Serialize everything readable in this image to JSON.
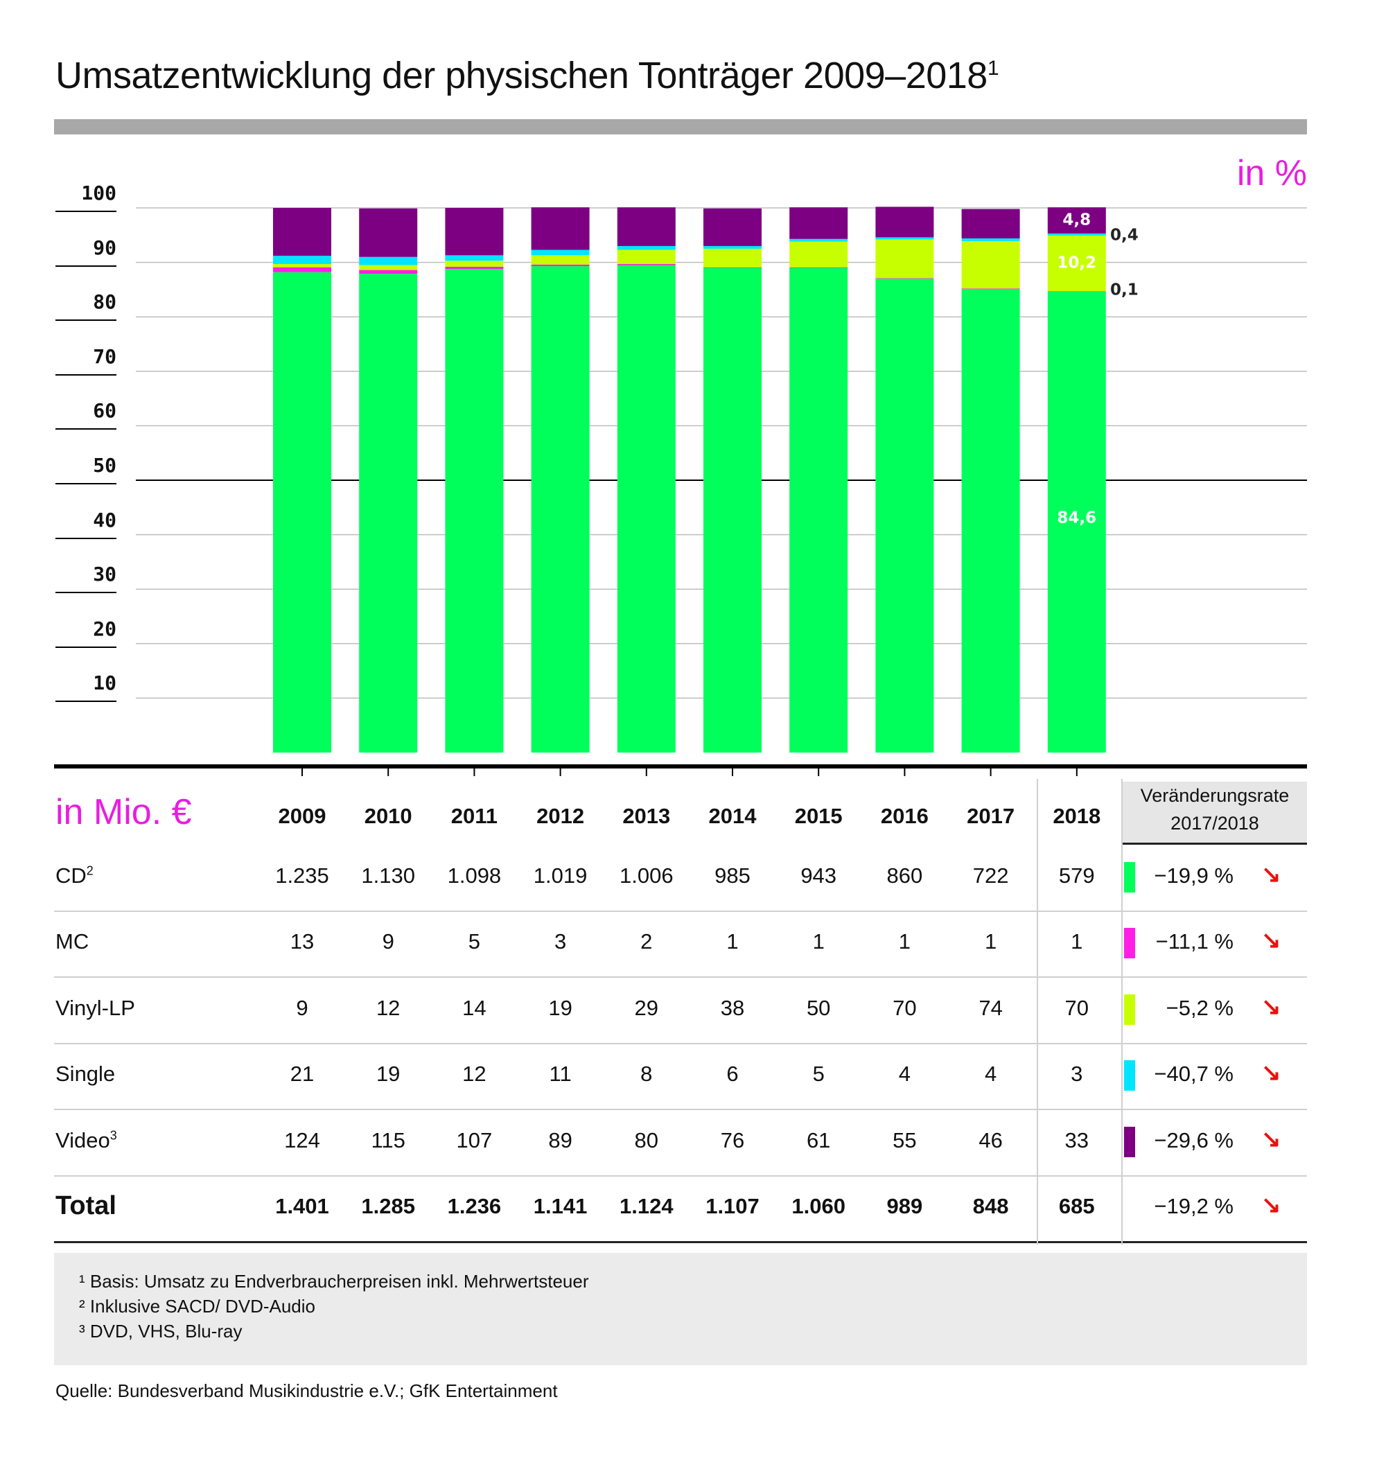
{
  "title": "Umsatzentwicklung der physischen Tonträger 2009–2018",
  "title_sup": "1",
  "unit_percent": "in %",
  "unit_mio": "in Mio. €",
  "rate_header_line1": "Veränderungsrate",
  "rate_header_line2": "2017/2018",
  "chart_data": {
    "type": "bar",
    "stacked": true,
    "title": "Umsatzentwicklung der physischen Tonträger 2009–2018",
    "ylabel": "in %",
    "ylim": [
      0,
      100
    ],
    "yticks": [
      "100",
      "90",
      "80",
      "70",
      "60",
      "50",
      "40",
      "30",
      "20",
      "10"
    ],
    "categories": [
      "2009",
      "2010",
      "2011",
      "2012",
      "2013",
      "2014",
      "2015",
      "2016",
      "2017",
      "2018"
    ],
    "series": [
      {
        "name": "CD",
        "color": "#00ff5a",
        "values": [
          88.2,
          87.9,
          88.8,
          89.3,
          89.5,
          89.0,
          89.0,
          87.0,
          85.1,
          84.6
        ]
      },
      {
        "name": "MC",
        "color": "#ff1ee6",
        "values": [
          0.9,
          0.7,
          0.4,
          0.3,
          0.2,
          0.1,
          0.1,
          0.1,
          0.1,
          0.1
        ]
      },
      {
        "name": "Vinyl-LP",
        "color": "#c8ff00",
        "values": [
          0.6,
          0.9,
          1.1,
          1.7,
          2.6,
          3.4,
          4.7,
          7.1,
          8.7,
          10.2
        ]
      },
      {
        "name": "Single",
        "color": "#00e5ff",
        "values": [
          1.5,
          1.5,
          1.0,
          1.0,
          0.7,
          0.5,
          0.5,
          0.4,
          0.5,
          0.4
        ]
      },
      {
        "name": "Video",
        "color": "#7d0083",
        "values": [
          8.8,
          8.9,
          8.7,
          7.8,
          7.1,
          6.9,
          5.8,
          5.6,
          5.4,
          4.8
        ]
      }
    ],
    "data_labels_2018": {
      "inside_cd": "84,6",
      "inside_vinyl": "10,2",
      "inside_video": "4,8",
      "side_single": "0,4",
      "side_mc": "0,1"
    },
    "grid": true,
    "legend": "none"
  },
  "table": {
    "years": [
      "2009",
      "2010",
      "2011",
      "2012",
      "2013",
      "2014",
      "2015",
      "2016",
      "2017",
      "2018"
    ],
    "rows": [
      {
        "label": "CD",
        "sup": "2",
        "values": [
          "1.235",
          "1.130",
          "1.098",
          "1.019",
          "1.006",
          "985",
          "943",
          "860",
          "722",
          "579"
        ],
        "rate": "−19,9 %",
        "color": "#00ff5a"
      },
      {
        "label": "MC",
        "sup": "",
        "values": [
          "13",
          "9",
          "5",
          "3",
          "2",
          "1",
          "1",
          "1",
          "1",
          "1"
        ],
        "rate": "−11,1 %",
        "color": "#ff1ee6"
      },
      {
        "label": "Vinyl-LP",
        "sup": "",
        "values": [
          "9",
          "12",
          "14",
          "19",
          "29",
          "38",
          "50",
          "70",
          "74",
          "70"
        ],
        "rate": "−5,2 %",
        "color": "#c8ff00"
      },
      {
        "label": "Single",
        "sup": "",
        "values": [
          "21",
          "19",
          "12",
          "11",
          "8",
          "6",
          "5",
          "4",
          "4",
          "3"
        ],
        "rate": "−40,7 %",
        "color": "#00e5ff"
      },
      {
        "label": "Video",
        "sup": "3",
        "values": [
          "124",
          "115",
          "107",
          "89",
          "80",
          "76",
          "61",
          "55",
          "46",
          "33"
        ],
        "rate": "−29,6 %",
        "color": "#7d0083"
      }
    ],
    "total": {
      "label": "Total",
      "values": [
        "1.401",
        "1.285",
        "1.236",
        "1.141",
        "1.124",
        "1.107",
        "1.060",
        "989",
        "848",
        "685"
      ],
      "rate": "−19,2 %"
    }
  },
  "footnotes": [
    "¹ Basis: Umsatz zu Endverbraucherpreisen inkl. Mehrwertsteuer",
    "² Inklusive SACD/ DVD-Audio",
    "³ DVD, VHS, Blu-ray"
  ],
  "source": "Quelle: Bundesverband Musikindustrie e.V.; GfK Entertainment"
}
